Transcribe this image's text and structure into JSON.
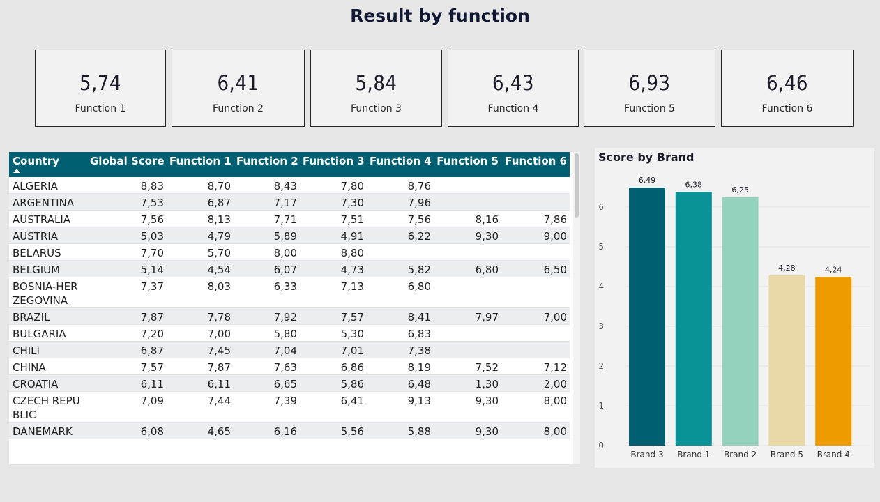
{
  "page": {
    "title": "Result by function"
  },
  "kpis": [
    {
      "value": "5,74",
      "label": "Function 1"
    },
    {
      "value": "6,41",
      "label": "Function 2"
    },
    {
      "value": "5,84",
      "label": "Function 3"
    },
    {
      "value": "6,43",
      "label": "Function 4"
    },
    {
      "value": "6,93",
      "label": "Function 5"
    },
    {
      "value": "6,46",
      "label": "Function 6"
    }
  ],
  "table": {
    "columns": [
      "Country",
      "Global Score",
      "Function 1",
      "Function 2",
      "Function 3",
      "Function 4",
      "Function 5",
      "Function 6"
    ],
    "rows": [
      [
        "ALGERIA",
        "8,83",
        "8,70",
        "8,43",
        "7,80",
        "8,76",
        "",
        ""
      ],
      [
        "ARGENTINA",
        "7,53",
        "6,87",
        "7,17",
        "7,30",
        "7,96",
        "",
        ""
      ],
      [
        "AUSTRALIA",
        "7,56",
        "8,13",
        "7,71",
        "7,51",
        "7,56",
        "8,16",
        "7,86"
      ],
      [
        "AUSTRIA",
        "5,03",
        "4,79",
        "5,89",
        "4,91",
        "6,22",
        "9,30",
        "9,00"
      ],
      [
        "BELARUS",
        "7,70",
        "5,70",
        "8,00",
        "8,80",
        "",
        "",
        ""
      ],
      [
        "BELGIUM",
        "5,14",
        "4,54",
        "6,07",
        "4,73",
        "5,82",
        "6,80",
        "6,50"
      ],
      [
        "BOSNIA-HERZEGOVINA",
        "7,37",
        "8,03",
        "6,33",
        "7,13",
        "6,80",
        "",
        ""
      ],
      [
        "BRAZIL",
        "7,87",
        "7,78",
        "7,92",
        "7,57",
        "8,41",
        "7,97",
        "7,00"
      ],
      [
        "BULGARIA",
        "7,20",
        "7,00",
        "5,80",
        "5,30",
        "6,83",
        "",
        ""
      ],
      [
        "CHILI",
        "6,87",
        "7,45",
        "7,04",
        "7,01",
        "7,38",
        "",
        ""
      ],
      [
        "CHINA",
        "7,57",
        "7,87",
        "7,63",
        "6,86",
        "8,19",
        "7,52",
        "7,12"
      ],
      [
        "CROATIA",
        "6,11",
        "6,11",
        "6,65",
        "5,86",
        "6,48",
        "1,30",
        "2,00"
      ],
      [
        "CZECH REPUBLIC",
        "7,09",
        "7,44",
        "7,39",
        "6,41",
        "9,13",
        "9,30",
        "8,00"
      ],
      [
        "DANEMARK",
        "6,08",
        "4,65",
        "6,16",
        "5,56",
        "5,88",
        "9,30",
        "8,00"
      ]
    ]
  },
  "chart_data": {
    "type": "bar",
    "title": "Score by Brand",
    "categories": [
      "Brand 3",
      "Brand 1",
      "Brand 2",
      "Brand 5",
      "Brand 4"
    ],
    "values": [
      6.49,
      6.38,
      6.25,
      4.28,
      4.24
    ],
    "data_labels": [
      "6,49",
      "6,38",
      "6,25",
      "4,28",
      "4,24"
    ],
    "colors": [
      "#005f70",
      "#0a9396",
      "#94d2bd",
      "#e9d8a6",
      "#ee9b00"
    ],
    "ylim": [
      0,
      6.5
    ],
    "yticks": [
      0,
      1,
      2,
      3,
      4,
      5,
      6
    ],
    "grid": true,
    "legend": "none"
  }
}
